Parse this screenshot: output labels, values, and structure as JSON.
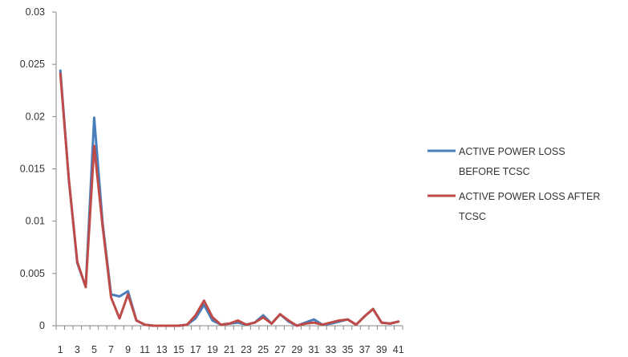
{
  "chart_data": {
    "type": "line",
    "x": [
      1,
      2,
      3,
      4,
      5,
      6,
      7,
      8,
      9,
      10,
      11,
      12,
      13,
      14,
      15,
      16,
      17,
      18,
      19,
      20,
      21,
      22,
      23,
      24,
      25,
      26,
      27,
      28,
      29,
      30,
      31,
      32,
      33,
      34,
      35,
      36,
      37,
      38,
      39,
      40,
      41
    ],
    "x_tick_labels": [
      "1",
      "3",
      "5",
      "7",
      "9",
      "11",
      "13",
      "15",
      "17",
      "19",
      "21",
      "23",
      "25",
      "27",
      "29",
      "31",
      "33",
      "35",
      "37",
      "39",
      "41"
    ],
    "y_tick_labels": [
      "0",
      "0.005",
      "0.01",
      "0.015",
      "0.02",
      "0.025",
      "0.03"
    ],
    "ylim": [
      0,
      0.03
    ],
    "yticks": [
      0,
      0.005,
      0.01,
      0.015,
      0.02,
      0.025,
      0.03
    ],
    "grid": false,
    "legend_position": "right",
    "series": [
      {
        "name": "ACTIVE POWER LOSS BEFORE TCSC",
        "color": "#4a7ebb",
        "values": [
          0.0244,
          0.014,
          0.006,
          0.0037,
          0.0199,
          0.0098,
          0.003,
          0.0028,
          0.0033,
          0.0005,
          0.0001,
          0.0,
          0.0,
          0.0,
          0.0,
          0.0001,
          0.0007,
          0.002,
          0.0005,
          0.0001,
          0.0002,
          0.0003,
          0.0001,
          0.0003,
          0.001,
          0.0002,
          0.0011,
          0.0004,
          0.0,
          0.0003,
          0.0006,
          0.0001,
          0.0002,
          0.0004,
          0.0006,
          0.0001,
          0.0009,
          0.0016,
          0.0003,
          0.0002,
          0.0004
        ]
      },
      {
        "name": "ACTIVE POWER LOSS AFTER TCSC",
        "color": "#be4b48",
        "values": [
          0.0241,
          0.014,
          0.0061,
          0.0037,
          0.0172,
          0.0095,
          0.0027,
          0.0007,
          0.003,
          0.0005,
          0.0001,
          0.0,
          0.0,
          0.0,
          0.0,
          0.0001,
          0.001,
          0.0024,
          0.0008,
          0.0001,
          0.0002,
          0.0005,
          0.0001,
          0.0003,
          0.0008,
          0.0002,
          0.0011,
          0.0005,
          0.0,
          0.0002,
          0.0003,
          0.0001,
          0.0003,
          0.0005,
          0.0006,
          0.0001,
          0.0009,
          0.0016,
          0.0003,
          0.0002,
          0.0004
        ]
      }
    ]
  },
  "legend": {
    "items": [
      {
        "line1": "ACTIVE POWER LOSS",
        "line2": "BEFORE TCSC",
        "color": "#4a7ebb"
      },
      {
        "line1": "ACTIVE POWER LOSS AFTER",
        "line2": "TCSC",
        "color": "#be4b48"
      }
    ]
  }
}
